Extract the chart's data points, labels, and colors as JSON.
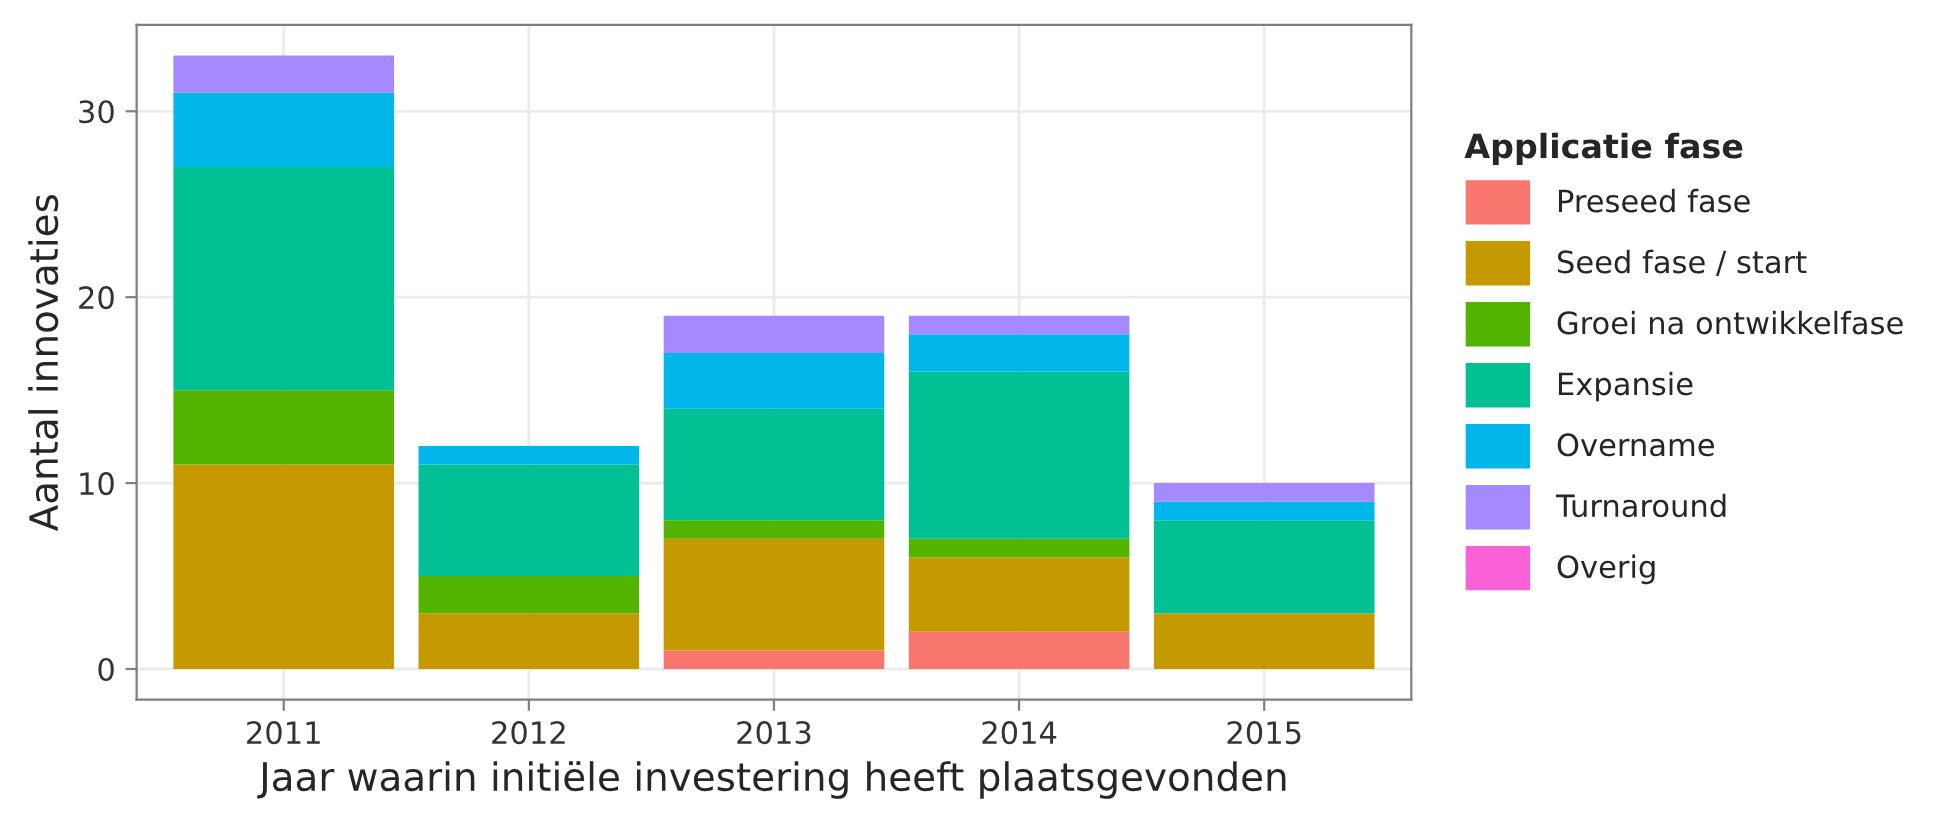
{
  "chart_data": {
    "type": "bar",
    "stacked": true,
    "xlabel": "Jaar waarin initiële investering heeft plaatsgevonden",
    "ylabel": "Aantal innovaties",
    "legend_title": "Applicatie fase",
    "legend": "right",
    "grid": true,
    "categories": [
      "2011",
      "2012",
      "2013",
      "2014",
      "2015"
    ],
    "ylim": [
      -1.65,
      34.65
    ],
    "yticks": [
      0,
      10,
      20,
      30
    ],
    "series": [
      {
        "name": "Preseed fase",
        "color": "#f8766d",
        "values": [
          0,
          0,
          1,
          2,
          0
        ]
      },
      {
        "name": "Seed fase / start",
        "color": "#c49a00",
        "values": [
          11,
          3,
          6,
          4,
          3
        ]
      },
      {
        "name": "Groei na ontwikkelfase",
        "color": "#53b400",
        "values": [
          4,
          2,
          1,
          1,
          0
        ]
      },
      {
        "name": "Expansie",
        "color": "#00c094",
        "values": [
          12,
          6,
          6,
          9,
          5
        ]
      },
      {
        "name": "Overname",
        "color": "#00b6eb",
        "values": [
          4,
          1,
          3,
          2,
          1
        ]
      },
      {
        "name": "Turnaround",
        "color": "#a58aff",
        "values": [
          2,
          0,
          2,
          1,
          1
        ]
      },
      {
        "name": "Overig",
        "color": "#fb61d7",
        "values": [
          0,
          0,
          0,
          0,
          0
        ]
      }
    ]
  }
}
